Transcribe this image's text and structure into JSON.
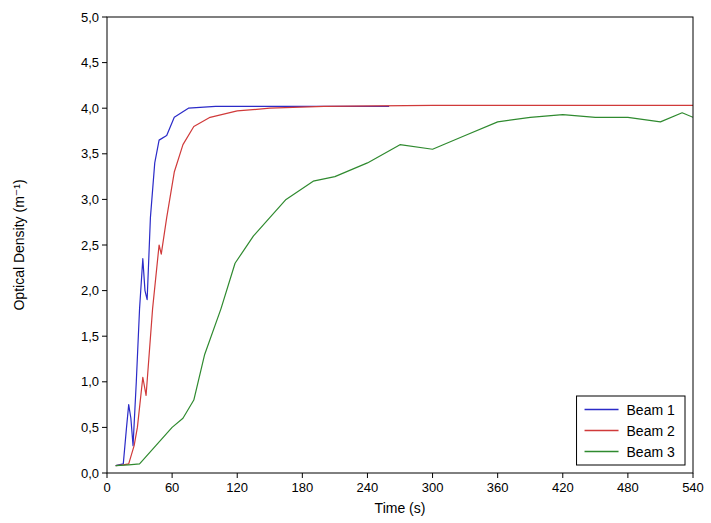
{
  "chart_data": {
    "type": "line",
    "x_label": "Time (s)",
    "y_label": "Optical Density (m⁻¹)",
    "xlim": [
      0,
      540
    ],
    "xticks": [
      0,
      60,
      120,
      180,
      240,
      300,
      360,
      420,
      480,
      540
    ],
    "ylim": [
      0,
      5
    ],
    "yticks": [
      {
        "value": 0,
        "label": "0,0"
      },
      {
        "value": 0.5,
        "label": "0,5"
      },
      {
        "value": 1,
        "label": "1,0"
      },
      {
        "value": 1.5,
        "label": "1,5"
      },
      {
        "value": 2,
        "label": "2,0"
      },
      {
        "value": 2.5,
        "label": "2,5"
      },
      {
        "value": 3,
        "label": "3,0"
      },
      {
        "value": 3.5,
        "label": "3,5"
      },
      {
        "value": 4,
        "label": "4,0"
      },
      {
        "value": 4.5,
        "label": "4,5"
      },
      {
        "value": 5,
        "label": "5,0"
      }
    ],
    "grid": false,
    "legend": "bottom-right",
    "series": [
      {
        "name": "Beam 1",
        "color": "#2b2bc8",
        "x": [
          8,
          15,
          18,
          20,
          22,
          24,
          27,
          30,
          33,
          35,
          37,
          40,
          44,
          48,
          55,
          62,
          75,
          100,
          150,
          200,
          260
        ],
        "values": [
          0.08,
          0.1,
          0.5,
          0.75,
          0.6,
          0.3,
          1.0,
          1.8,
          2.35,
          2.0,
          1.9,
          2.8,
          3.4,
          3.65,
          3.7,
          3.9,
          4.0,
          4.02,
          4.02,
          4.02,
          4.02
        ]
      },
      {
        "name": "Beam 2",
        "color": "#d03a3a",
        "x": [
          8,
          15,
          20,
          25,
          28,
          33,
          36,
          42,
          48,
          50,
          55,
          62,
          70,
          80,
          95,
          120,
          150,
          200,
          300,
          400,
          540
        ],
        "values": [
          0.08,
          0.09,
          0.1,
          0.3,
          0.5,
          1.05,
          0.85,
          1.8,
          2.5,
          2.4,
          2.8,
          3.3,
          3.6,
          3.8,
          3.9,
          3.97,
          4.0,
          4.02,
          4.03,
          4.03,
          4.03
        ]
      },
      {
        "name": "Beam 3",
        "color": "#2f8a2f",
        "x": [
          8,
          20,
          30,
          45,
          60,
          70,
          80,
          90,
          105,
          118,
          135,
          150,
          165,
          190,
          210,
          240,
          270,
          300,
          330,
          360,
          390,
          420,
          450,
          480,
          510,
          530,
          540
        ],
        "values": [
          0.08,
          0.09,
          0.1,
          0.3,
          0.5,
          0.6,
          0.8,
          1.3,
          1.8,
          2.3,
          2.6,
          2.8,
          3.0,
          3.2,
          3.25,
          3.4,
          3.6,
          3.55,
          3.7,
          3.85,
          3.9,
          3.93,
          3.9,
          3.9,
          3.85,
          3.95,
          3.9
        ]
      }
    ]
  }
}
